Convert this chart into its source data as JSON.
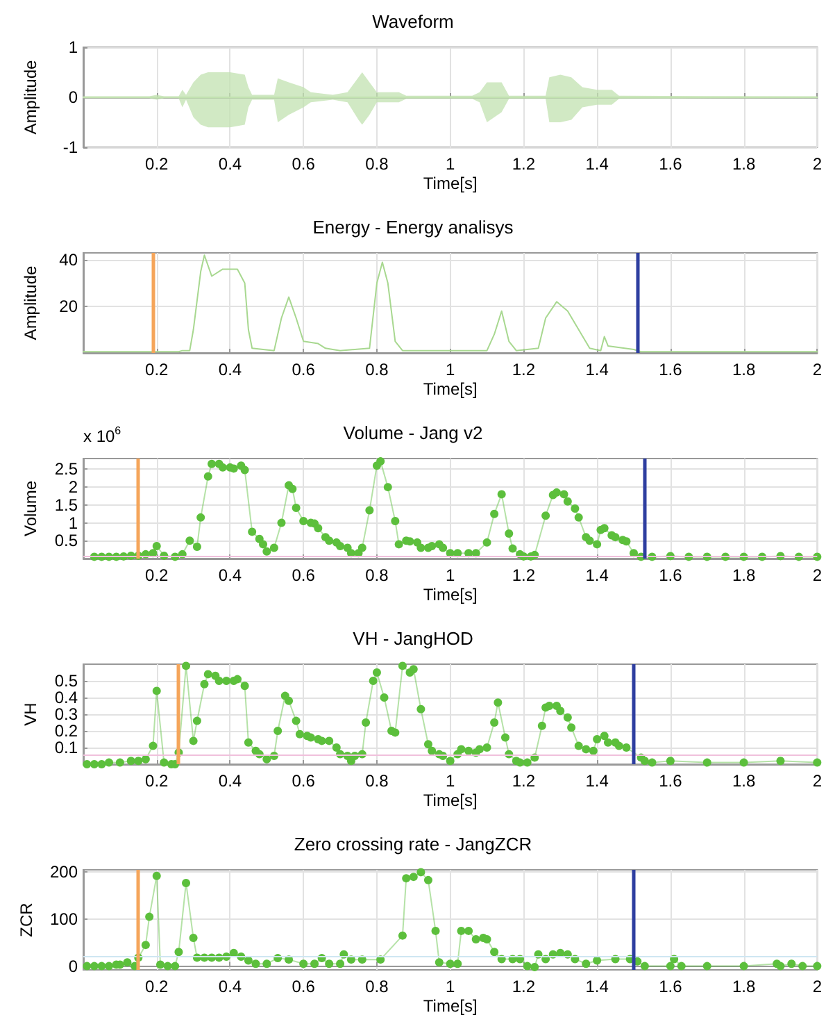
{
  "chart_data": [
    {
      "type": "line",
      "title": "Waveform",
      "xlabel": "Time[s]",
      "ylabel": "Amplitude",
      "xlim": [
        0,
        2
      ],
      "xticks": [
        0.2,
        0.4,
        0.6,
        0.8,
        1,
        1.2,
        1.4,
        1.6,
        1.8,
        2
      ],
      "ylim": [
        -1,
        1
      ],
      "yticks": [
        -1,
        0,
        1
      ],
      "grid": true,
      "marker": "none",
      "line_style": "solid",
      "x": [
        0,
        0.18,
        0.2,
        0.22,
        0.26,
        0.27,
        0.28,
        0.3,
        0.32,
        0.34,
        0.36,
        0.4,
        0.44,
        0.45,
        0.46,
        0.52,
        0.53,
        0.56,
        0.6,
        0.62,
        0.68,
        0.72,
        0.75,
        0.76,
        0.78,
        0.8,
        0.86,
        0.88,
        1.06,
        1.08,
        1.1,
        1.14,
        1.16,
        1.26,
        1.27,
        1.3,
        1.33,
        1.36,
        1.4,
        1.44,
        1.46,
        2
      ],
      "series": [
        {
          "color": "#c2e2b0",
          "values": [
            0,
            0,
            0,
            0,
            0,
            0,
            0,
            0,
            0,
            0,
            0,
            0,
            0,
            0,
            0,
            0,
            0,
            0,
            0,
            0,
            0,
            0,
            0,
            0,
            0,
            0,
            0,
            0,
            0,
            0,
            0,
            0,
            0,
            0,
            0,
            0,
            0,
            0,
            0,
            0,
            0,
            0
          ],
          "upper": [
            0.02,
            0.02,
            0.05,
            0.02,
            0.02,
            0.15,
            0.05,
            0.3,
            0.45,
            0.5,
            0.5,
            0.5,
            0.45,
            0.2,
            0.05,
            0.05,
            0.38,
            0.3,
            0.2,
            0.1,
            0.05,
            0.1,
            0.4,
            0.5,
            0.3,
            0.1,
            0.1,
            0.03,
            0.03,
            0.1,
            0.3,
            0.3,
            0.03,
            0.03,
            0.4,
            0.45,
            0.4,
            0.2,
            0.15,
            0.15,
            0.03,
            0.02
          ],
          "lower": [
            -0.02,
            -0.02,
            -0.05,
            -0.02,
            -0.02,
            -0.2,
            -0.05,
            -0.4,
            -0.55,
            -0.6,
            -0.6,
            -0.6,
            -0.55,
            -0.2,
            -0.05,
            -0.05,
            -0.5,
            -0.35,
            -0.2,
            -0.1,
            -0.05,
            -0.1,
            -0.45,
            -0.55,
            -0.35,
            -0.1,
            -0.1,
            -0.03,
            -0.03,
            -0.1,
            -0.5,
            -0.3,
            -0.03,
            -0.03,
            -0.5,
            -0.5,
            -0.45,
            -0.2,
            -0.15,
            -0.15,
            -0.03,
            -0.02
          ]
        }
      ]
    },
    {
      "type": "line",
      "title": "Energy - Energy analisys",
      "xlabel": "Time[s]",
      "ylabel": "Amplitude",
      "xlim": [
        0,
        2
      ],
      "xticks": [
        0.2,
        0.4,
        0.6,
        0.8,
        1,
        1.2,
        1.4,
        1.6,
        1.8,
        2
      ],
      "ylim": [
        0,
        43
      ],
      "yticks": [
        20,
        40
      ],
      "grid": true,
      "marker": "none",
      "line_style": "solid",
      "x": [
        0,
        0.26,
        0.27,
        0.29,
        0.3,
        0.32,
        0.33,
        0.35,
        0.38,
        0.42,
        0.44,
        0.45,
        0.46,
        0.52,
        0.54,
        0.56,
        0.58,
        0.6,
        0.64,
        0.66,
        0.7,
        0.78,
        0.8,
        0.815,
        0.83,
        0.85,
        0.87,
        1.1,
        1.12,
        1.14,
        1.16,
        1.18,
        1.24,
        1.26,
        1.29,
        1.32,
        1.35,
        1.38,
        1.41,
        1.42,
        1.43,
        1.5,
        1.52,
        2
      ],
      "series": [
        {
          "color": "#a8d890",
          "values": [
            0.5,
            0.5,
            1,
            1,
            10,
            35,
            42,
            33,
            36,
            36,
            30,
            10,
            2,
            1,
            15,
            24,
            15,
            5,
            4,
            2,
            1,
            2,
            30,
            39,
            30,
            5,
            1,
            1,
            8,
            18,
            5,
            1,
            2,
            15,
            22,
            18,
            10,
            2,
            1,
            7,
            3,
            1.5,
            0.5,
            0.5
          ]
        }
      ],
      "ref_lines": [
        {
          "axis": "x",
          "value": 0.19,
          "color": "#f5a55a"
        },
        {
          "axis": "x",
          "value": 1.51,
          "color": "#2e3ea0"
        }
      ]
    },
    {
      "type": "line",
      "title": "Volume - Jang v2",
      "xlabel": "Time[s]",
      "ylabel": "Volume",
      "annotations": [
        "x 10$^{6}$"
      ],
      "xlim": [
        0,
        2
      ],
      "xticks": [
        0.2,
        0.4,
        0.6,
        0.8,
        1,
        1.2,
        1.4,
        1.6,
        1.8,
        2
      ],
      "ylim": [
        0,
        2.8
      ],
      "yticks": [
        0.5,
        1,
        1.5,
        2,
        2.5
      ],
      "grid": true,
      "marker": "circle",
      "line_style": "solid",
      "x": [
        0.03,
        0.05,
        0.07,
        0.09,
        0.11,
        0.13,
        0.15,
        0.17,
        0.19,
        0.2,
        0.22,
        0.25,
        0.27,
        0.29,
        0.31,
        0.32,
        0.34,
        0.35,
        0.37,
        0.38,
        0.4,
        0.41,
        0.43,
        0.44,
        0.46,
        0.48,
        0.49,
        0.5,
        0.52,
        0.54,
        0.56,
        0.57,
        0.58,
        0.6,
        0.62,
        0.63,
        0.64,
        0.66,
        0.67,
        0.69,
        0.7,
        0.72,
        0.73,
        0.75,
        0.76,
        0.78,
        0.8,
        0.81,
        0.83,
        0.85,
        0.86,
        0.88,
        0.89,
        0.91,
        0.92,
        0.94,
        0.95,
        0.97,
        0.98,
        1.0,
        1.02,
        1.05,
        1.07,
        1.1,
        1.12,
        1.14,
        1.16,
        1.17,
        1.19,
        1.2,
        1.22,
        1.23,
        1.26,
        1.28,
        1.29,
        1.31,
        1.32,
        1.34,
        1.35,
        1.37,
        1.38,
        1.4,
        1.41,
        1.42,
        1.44,
        1.45,
        1.47,
        1.48,
        1.5,
        1.52,
        1.55,
        1.6,
        1.65,
        1.7,
        1.75,
        1.8,
        1.85,
        1.9,
        1.95,
        2
      ],
      "series": [
        {
          "color": "#5cbf3c",
          "values": [
            0.05,
            0.05,
            0.05,
            0.05,
            0.06,
            0.08,
            0.08,
            0.12,
            0.15,
            0.35,
            0.08,
            0.05,
            0.12,
            0.5,
            0.33,
            1.15,
            2.3,
            2.65,
            2.65,
            2.55,
            2.55,
            2.52,
            2.6,
            2.48,
            0.75,
            0.55,
            0.4,
            0.2,
            0.3,
            1.0,
            2.05,
            1.95,
            1.42,
            1.05,
            1.0,
            0.98,
            0.85,
            0.6,
            0.5,
            0.45,
            0.35,
            0.3,
            0.15,
            0.15,
            0.3,
            1.35,
            2.6,
            2.72,
            2.0,
            1.05,
            0.4,
            0.5,
            0.48,
            0.45,
            0.3,
            0.3,
            0.35,
            0.4,
            0.3,
            0.15,
            0.15,
            0.15,
            0.15,
            0.45,
            1.25,
            1.8,
            0.7,
            0.28,
            0.12,
            0.06,
            0.06,
            0.1,
            1.2,
            1.78,
            1.85,
            1.8,
            1.6,
            1.4,
            1.15,
            0.6,
            0.5,
            0.4,
            0.8,
            0.85,
            0.65,
            0.6,
            0.52,
            0.48,
            0.15,
            0.05,
            0.05,
            0.07,
            0.05,
            0.05,
            0.05,
            0.05,
            0.05,
            0.07,
            0.05,
            0.05
          ]
        }
      ],
      "ref_lines": [
        {
          "axis": "y",
          "value": 0.08,
          "color": "#f0c0dc"
        },
        {
          "axis": "x",
          "value": 0.155,
          "color": "#f5a55a"
        },
        {
          "axis": "x",
          "value": 1.53,
          "color": "#2e3ea0"
        }
      ]
    },
    {
      "type": "line",
      "title": "VH - JangHOD",
      "xlabel": "Time[s]",
      "ylabel": "VH",
      "xlim": [
        0,
        2
      ],
      "xticks": [
        0.2,
        0.4,
        0.6,
        0.8,
        1,
        1.2,
        1.4,
        1.6,
        1.8,
        2
      ],
      "ylim": [
        0,
        0.6
      ],
      "yticks": [
        0.1,
        0.2,
        0.3,
        0.4,
        0.5
      ],
      "grid": true,
      "marker": "circle",
      "line_style": "solid",
      "x": [
        0.01,
        0.03,
        0.05,
        0.07,
        0.1,
        0.13,
        0.15,
        0.17,
        0.19,
        0.2,
        0.22,
        0.24,
        0.25,
        0.26,
        0.28,
        0.3,
        0.31,
        0.33,
        0.34,
        0.36,
        0.37,
        0.39,
        0.41,
        0.42,
        0.44,
        0.45,
        0.47,
        0.48,
        0.5,
        0.52,
        0.53,
        0.55,
        0.56,
        0.58,
        0.59,
        0.61,
        0.62,
        0.64,
        0.65,
        0.67,
        0.69,
        0.7,
        0.72,
        0.73,
        0.74,
        0.76,
        0.77,
        0.79,
        0.8,
        0.82,
        0.84,
        0.85,
        0.87,
        0.89,
        0.9,
        0.92,
        0.94,
        0.95,
        0.97,
        0.98,
        1.0,
        1.02,
        1.03,
        1.05,
        1.07,
        1.08,
        1.1,
        1.12,
        1.13,
        1.15,
        1.16,
        1.18,
        1.19,
        1.21,
        1.23,
        1.25,
        1.26,
        1.27,
        1.29,
        1.3,
        1.32,
        1.33,
        1.35,
        1.37,
        1.39,
        1.4,
        1.42,
        1.43,
        1.45,
        1.46,
        1.48,
        1.52,
        1.53,
        1.55,
        1.6,
        1.7,
        1.8,
        1.9,
        2
      ],
      "series": [
        {
          "color": "#5cbf3c",
          "values": [
            0,
            0,
            0,
            0.01,
            0.01,
            0.02,
            0.02,
            0.03,
            0.11,
            0.44,
            0.01,
            0,
            0,
            0.07,
            0.59,
            0.14,
            0.26,
            0.48,
            0.54,
            0.53,
            0.5,
            0.5,
            0.5,
            0.51,
            0.47,
            0.13,
            0.08,
            0.06,
            0.03,
            0.05,
            0.2,
            0.41,
            0.38,
            0.26,
            0.18,
            0.17,
            0.16,
            0.15,
            0.14,
            0.14,
            0.1,
            0.06,
            0.05,
            0.02,
            0.05,
            0.06,
            0.25,
            0.5,
            0.55,
            0.4,
            0.2,
            0.19,
            0.59,
            0.55,
            0.57,
            0.33,
            0.12,
            0.08,
            0.06,
            0.05,
            0.02,
            0.06,
            0.09,
            0.08,
            0.07,
            0.09,
            0.1,
            0.25,
            0.37,
            0.16,
            0.06,
            0.02,
            0.01,
            0.01,
            0.04,
            0.23,
            0.34,
            0.35,
            0.35,
            0.32,
            0.28,
            0.22,
            0.11,
            0.09,
            0.08,
            0.15,
            0.17,
            0.13,
            0.13,
            0.11,
            0.1,
            0.04,
            0.02,
            0.01,
            0.02,
            0.01,
            0.01,
            0.02,
            0.01
          ]
        }
      ],
      "ref_lines": [
        {
          "axis": "y",
          "value": 0.06,
          "color": "#f0c0dc"
        },
        {
          "axis": "x",
          "value": 0.255,
          "color": "#f5a55a"
        },
        {
          "axis": "x",
          "value": 1.5,
          "color": "#2e3ea0"
        }
      ]
    },
    {
      "type": "line",
      "title": "Zero crossing rate - JangZCR",
      "xlabel": "Time[s]",
      "ylabel": "ZCR",
      "xlim": [
        0,
        2
      ],
      "xticks": [
        0.2,
        0.4,
        0.6,
        0.8,
        1,
        1.2,
        1.4,
        1.6,
        1.8,
        2
      ],
      "ylim": [
        -8,
        205
      ],
      "yticks": [
        0,
        100,
        200
      ],
      "grid": true,
      "marker": "circle",
      "line_style": "solid",
      "x": [
        0.01,
        0.03,
        0.05,
        0.07,
        0.09,
        0.1,
        0.12,
        0.14,
        0.15,
        0.17,
        0.18,
        0.2,
        0.21,
        0.23,
        0.25,
        0.26,
        0.28,
        0.3,
        0.31,
        0.33,
        0.35,
        0.37,
        0.39,
        0.41,
        0.43,
        0.45,
        0.47,
        0.5,
        0.53,
        0.56,
        0.6,
        0.63,
        0.65,
        0.67,
        0.7,
        0.71,
        0.73,
        0.76,
        0.81,
        0.87,
        0.88,
        0.9,
        0.92,
        0.94,
        0.96,
        0.97,
        1.0,
        1.02,
        1.03,
        1.05,
        1.07,
        1.09,
        1.1,
        1.12,
        1.14,
        1.17,
        1.19,
        1.21,
        1.23,
        1.24,
        1.26,
        1.28,
        1.3,
        1.32,
        1.34,
        1.37,
        1.4,
        1.45,
        1.49,
        1.51,
        1.53,
        1.6,
        1.61,
        1.63,
        1.7,
        1.8,
        1.89,
        1.9,
        1.93,
        1.96,
        2
      ],
      "series": [
        {
          "color": "#5cbf3c",
          "values": [
            0,
            0,
            0,
            0,
            3,
            3,
            8,
            0,
            18,
            45,
            105,
            192,
            3,
            0,
            0,
            30,
            177,
            60,
            18,
            18,
            18,
            18,
            20,
            28,
            20,
            12,
            5,
            5,
            17,
            14,
            5,
            5,
            17,
            5,
            5,
            25,
            14,
            14,
            14,
            65,
            187,
            190,
            200,
            183,
            75,
            8,
            5,
            5,
            75,
            75,
            57,
            60,
            57,
            30,
            15,
            15,
            15,
            0,
            -2,
            25,
            15,
            25,
            28,
            25,
            15,
            5,
            12,
            15,
            15,
            10,
            0,
            0,
            15,
            0,
            0,
            0,
            5,
            0,
            5,
            0,
            0
          ]
        }
      ],
      "ref_lines": [
        {
          "axis": "y",
          "value": 20,
          "color": "#cfe6f2"
        },
        {
          "axis": "x",
          "value": 0.155,
          "color": "#f5a55a"
        },
        {
          "axis": "x",
          "value": 1.5,
          "color": "#2e3ea0"
        }
      ]
    }
  ]
}
